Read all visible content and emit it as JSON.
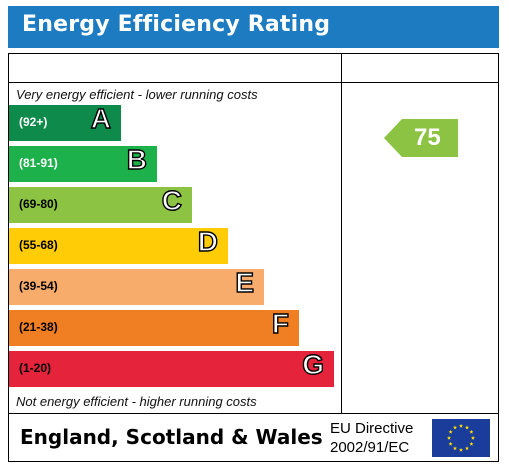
{
  "header": {
    "title": "Energy Efficiency Rating"
  },
  "notes": {
    "top": "Very energy efficient - lower running costs",
    "bottom": "Not energy efficient - higher running costs"
  },
  "bands": [
    {
      "range": "(92+)",
      "letter": "A",
      "color": "#0e8a4a"
    },
    {
      "range": "(81-91)",
      "letter": "B",
      "color": "#1db14b"
    },
    {
      "range": "(69-80)",
      "letter": "C",
      "color": "#8cc342"
    },
    {
      "range": "(55-68)",
      "letter": "D",
      "color": "#ffcc05"
    },
    {
      "range": "(39-54)",
      "letter": "E",
      "color": "#f7ac6c"
    },
    {
      "range": "(21-38)",
      "letter": "F",
      "color": "#f07f23"
    },
    {
      "range": "(1-20)",
      "letter": "G",
      "color": "#e5233b"
    }
  ],
  "rating": {
    "current": "75",
    "color": "#8cc342"
  },
  "footer": {
    "country": "England, Scotland & Wales",
    "directive_line1": "EU Directive",
    "directive_line2": "2002/91/EC"
  },
  "eu_flag": {
    "icon": "eu-flag-icon",
    "background": "#1a3d9c",
    "star_color": "#ffdd00"
  }
}
